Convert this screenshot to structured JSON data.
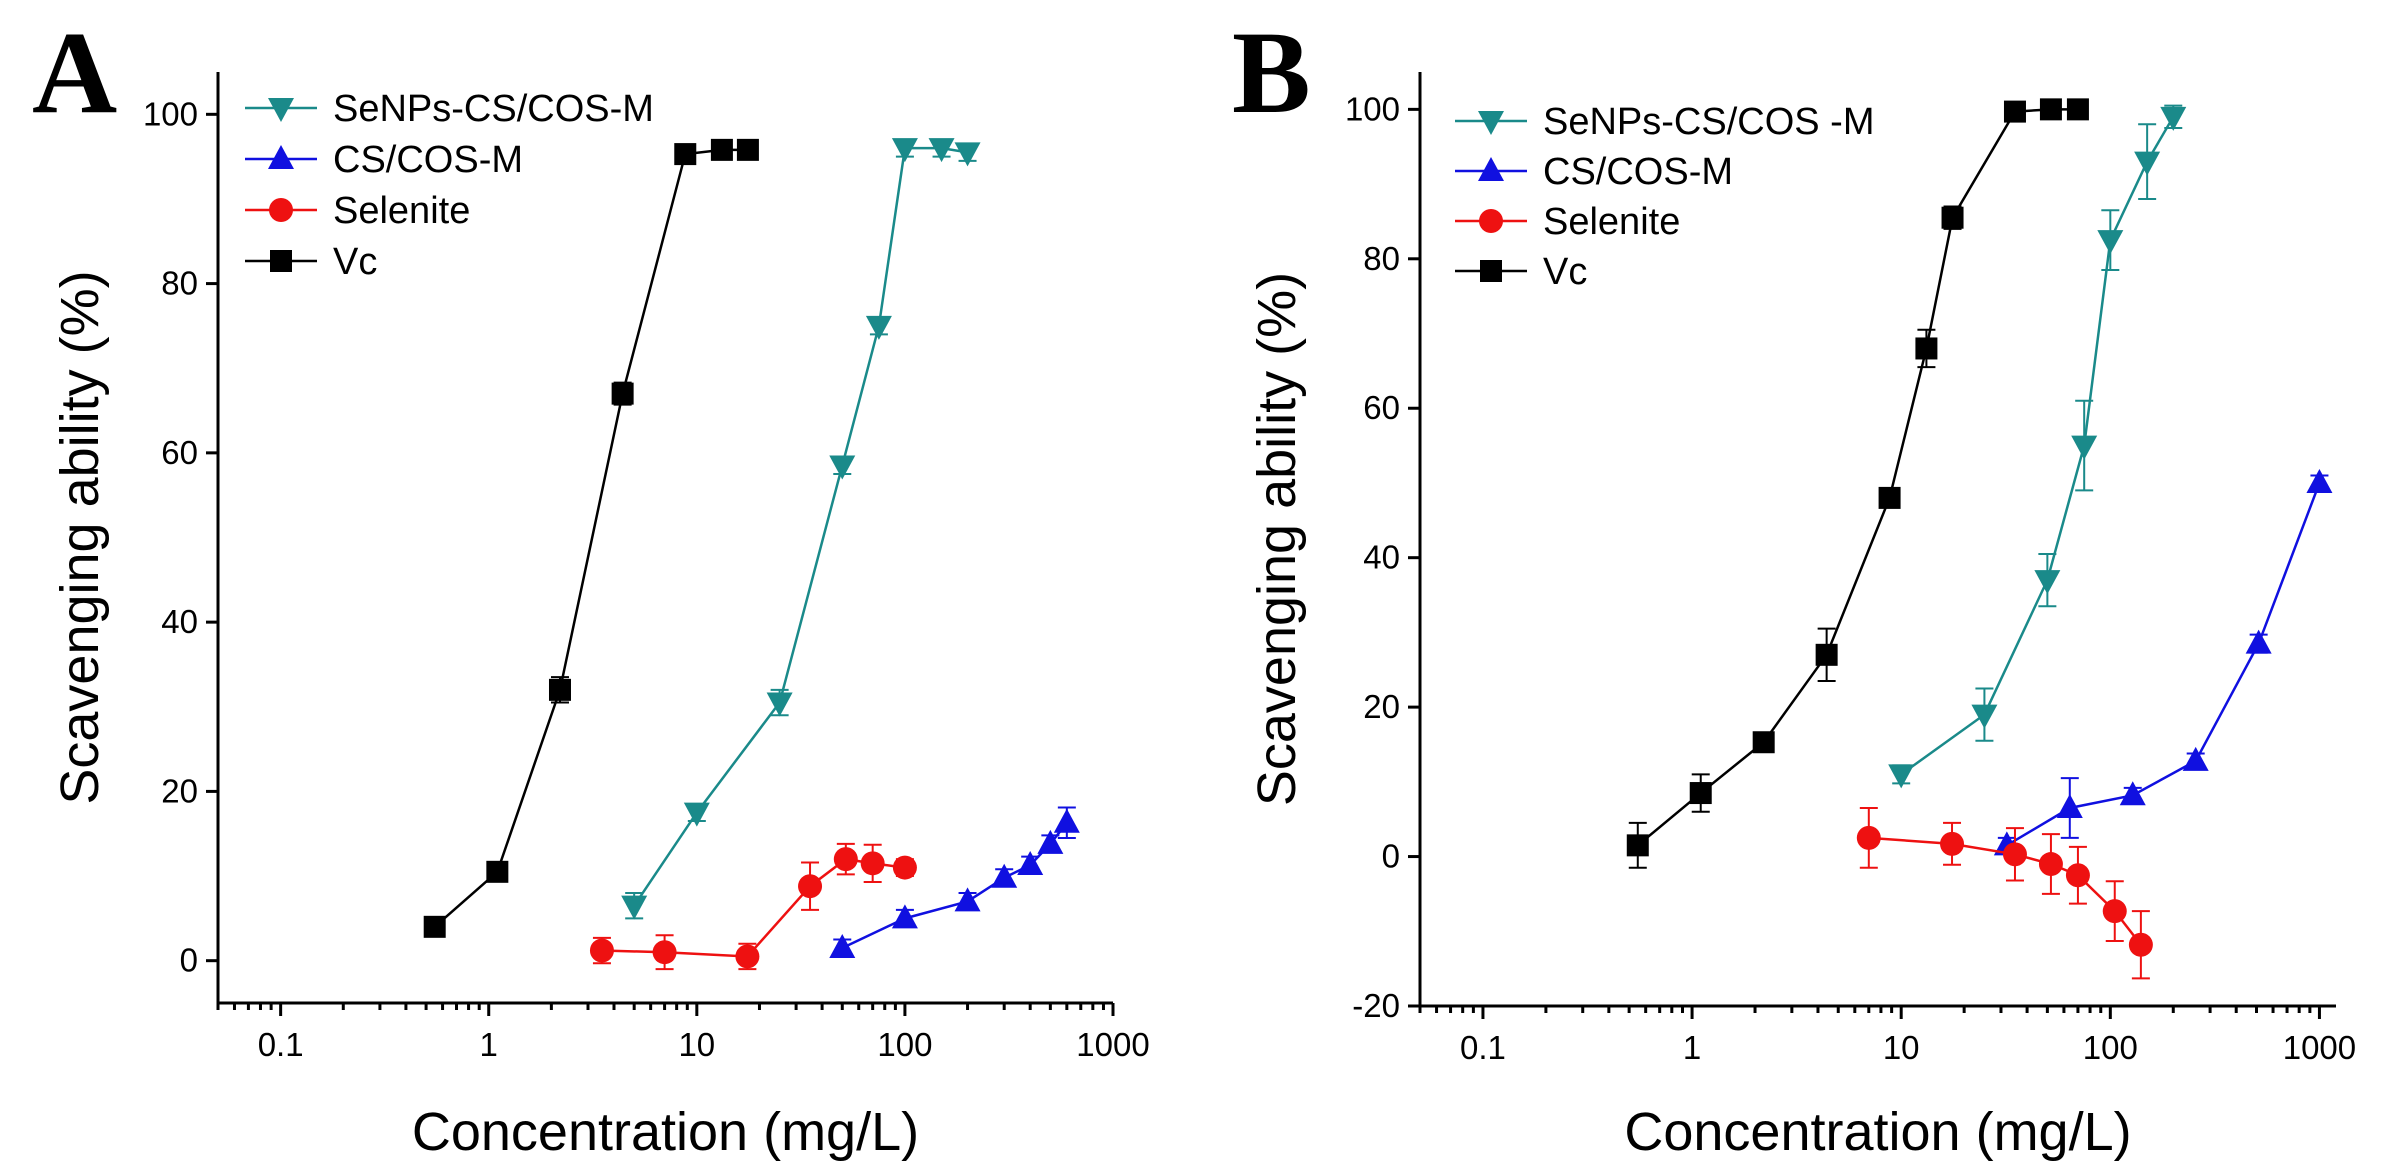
{
  "chart_data": [
    {
      "type": "line",
      "panel": "A",
      "xlabel": "Concentration (mg/L)",
      "ylabel": "Scavenging ability (%)",
      "xscale": "log",
      "xlim": [
        0.05,
        1000
      ],
      "ylim": [
        -5,
        105
      ],
      "xticks": [
        0.1,
        1,
        10,
        100,
        1000
      ],
      "xtick_labels": [
        "0.1",
        "1",
        "10",
        "100",
        "1000"
      ],
      "yticks": [
        0,
        20,
        40,
        60,
        80,
        100
      ],
      "ytick_labels": [
        "0",
        "20",
        "40",
        "60",
        "80",
        "100"
      ],
      "legend_position": "top-left",
      "series": [
        {
          "name": "SeNPs-CS/COS-M",
          "color": "#1a8a8a",
          "marker": "triangle-down",
          "x": [
            5,
            10,
            25,
            50,
            75,
            100,
            150,
            200
          ],
          "y": [
            6.5,
            17.5,
            30.5,
            58.5,
            75,
            96,
            96,
            95.5
          ],
          "err": [
            1.5,
            1,
            1.5,
            1,
            1,
            1,
            1,
            1
          ]
        },
        {
          "name": "CS/COS-M",
          "color": "#1010e0",
          "marker": "triangle-up",
          "x": [
            50,
            100,
            200,
            300,
            400,
            500,
            600
          ],
          "y": [
            1.5,
            5,
            7,
            9.8,
            11.3,
            13.8,
            16.3
          ],
          "err": [
            1,
            1,
            1,
            1,
            1,
            1,
            1.8
          ]
        },
        {
          "name": "Selenite",
          "color": "#ee1111",
          "marker": "circle",
          "x": [
            3.5,
            7,
            17.5,
            35,
            52,
            70,
            100
          ],
          "y": [
            1.2,
            1,
            0.5,
            8.8,
            12,
            11.5,
            11
          ],
          "err": [
            1.5,
            2,
            1.5,
            2.8,
            1.8,
            2.2,
            1
          ]
        },
        {
          "name": "Vc",
          "color": "#000000",
          "marker": "square",
          "x": [
            0.55,
            1.1,
            2.2,
            4.4,
            8.8,
            13.2,
            17.6
          ],
          "y": [
            4,
            10.5,
            32,
            67,
            95.3,
            95.8,
            95.8
          ],
          "err": [
            0.5,
            0.8,
            1.5,
            1.3,
            0.5,
            0.5,
            0.5
          ]
        }
      ]
    },
    {
      "type": "line",
      "panel": "B",
      "xlabel": "Concentration (mg/L)",
      "ylabel": "Scavenging ability (%)",
      "xscale": "log",
      "xlim": [
        0.05,
        1200
      ],
      "ylim": [
        -20,
        105
      ],
      "xticks": [
        0.1,
        1,
        10,
        100,
        1000
      ],
      "xtick_labels": [
        "0.1",
        "1",
        "10",
        "100",
        "1000"
      ],
      "yticks": [
        -20,
        0,
        20,
        40,
        60,
        80,
        100
      ],
      "ytick_labels": [
        "-20",
        "0",
        "20",
        "40",
        "60",
        "80",
        "100"
      ],
      "legend_position": "top-left",
      "series": [
        {
          "name": "SeNPs-CS/COS -M",
          "color": "#1a8a8a",
          "marker": "triangle-down",
          "x": [
            10,
            25,
            50,
            75,
            100,
            150,
            200
          ],
          "y": [
            11,
            19,
            37,
            55,
            82.5,
            93,
            99
          ],
          "err": [
            1.2,
            3.5,
            3.5,
            6,
            4,
            5,
            1.5
          ]
        },
        {
          "name": "CS/COS-M",
          "color": "#1010e0",
          "marker": "triangle-up",
          "x": [
            32,
            64,
            128,
            256,
            512,
            1000
          ],
          "y": [
            1.5,
            6.5,
            8.2,
            12.8,
            28.5,
            50
          ],
          "err": [
            1,
            4,
            1,
            1,
            1.2,
            1
          ]
        },
        {
          "name": "Selenite",
          "color": "#ee1111",
          "marker": "circle",
          "x": [
            7,
            17.5,
            35,
            52,
            70,
            105,
            140
          ],
          "y": [
            2.5,
            1.7,
            0.3,
            -1,
            -2.5,
            -7.3,
            -11.8
          ],
          "err": [
            4,
            2.8,
            3.5,
            4,
            3.8,
            4,
            4.5
          ]
        },
        {
          "name": "Vc",
          "color": "#000000",
          "marker": "square",
          "x": [
            0.55,
            1.1,
            2.2,
            4.4,
            8.8,
            13.2,
            17.6,
            35,
            52,
            70
          ],
          "y": [
            1.5,
            8.5,
            15.3,
            27,
            48,
            68,
            85.5,
            99.7,
            100,
            100
          ],
          "err": [
            3,
            2.5,
            0.5,
            3.5,
            1,
            2.5,
            1.5,
            0.5,
            0.5,
            0.5
          ]
        }
      ]
    }
  ]
}
